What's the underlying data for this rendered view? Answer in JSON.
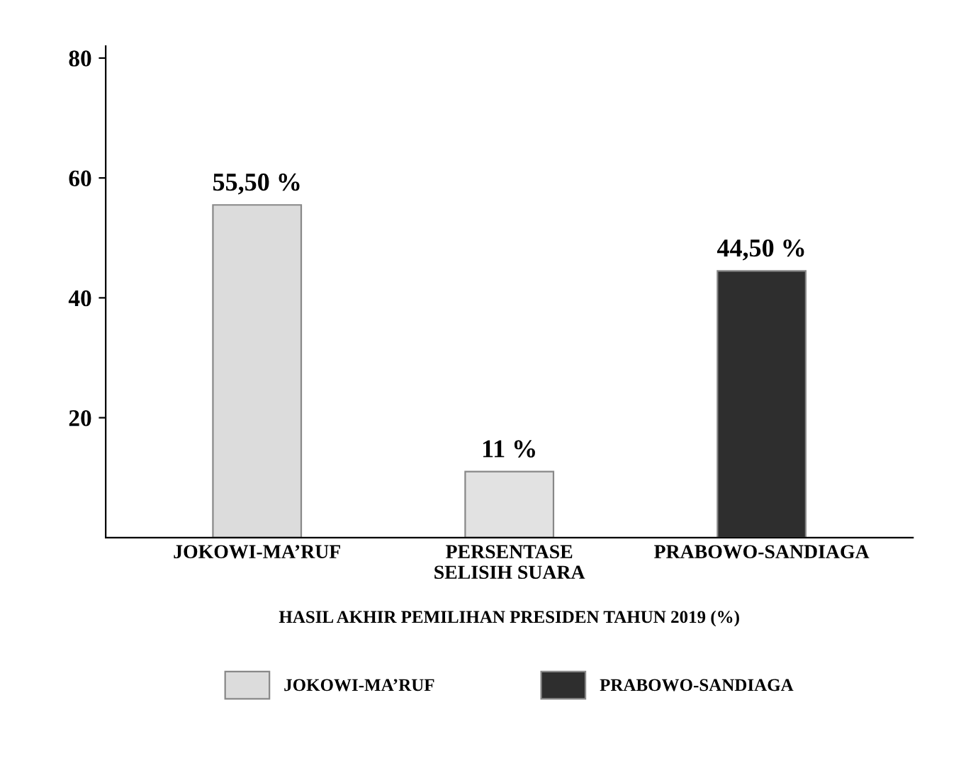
{
  "chart_data": {
    "type": "bar",
    "categories": [
      "JOKOWI-MA’RUF",
      "PERSENTASE\nSELISIH SUARA",
      "PRABOWO-SANDIAGA"
    ],
    "series": [
      {
        "name": "JOKOWI-MA’RUF",
        "color": "#dcdcdc",
        "values": [
          55.5,
          null,
          null
        ],
        "value_labels": [
          "55,50 %",
          null,
          null
        ]
      },
      {
        "color": "#e2e2e2",
        "values": [
          null,
          11,
          null
        ],
        "value_labels": [
          null,
          "11 %",
          null
        ]
      },
      {
        "name": "PRABOWO-SANDIAGA",
        "color": "#2e2e2e",
        "values": [
          null,
          null,
          44.5
        ],
        "value_labels": [
          null,
          null,
          "44,50 %"
        ]
      }
    ],
    "xlabel": "HASIL AKHIR PEMILIHAN PRESIDEN TAHUN 2019 (%)",
    "ylim": [
      0,
      82
    ],
    "yticks": [
      20,
      40,
      60,
      80
    ],
    "grid": false,
    "legend": "bottom"
  }
}
